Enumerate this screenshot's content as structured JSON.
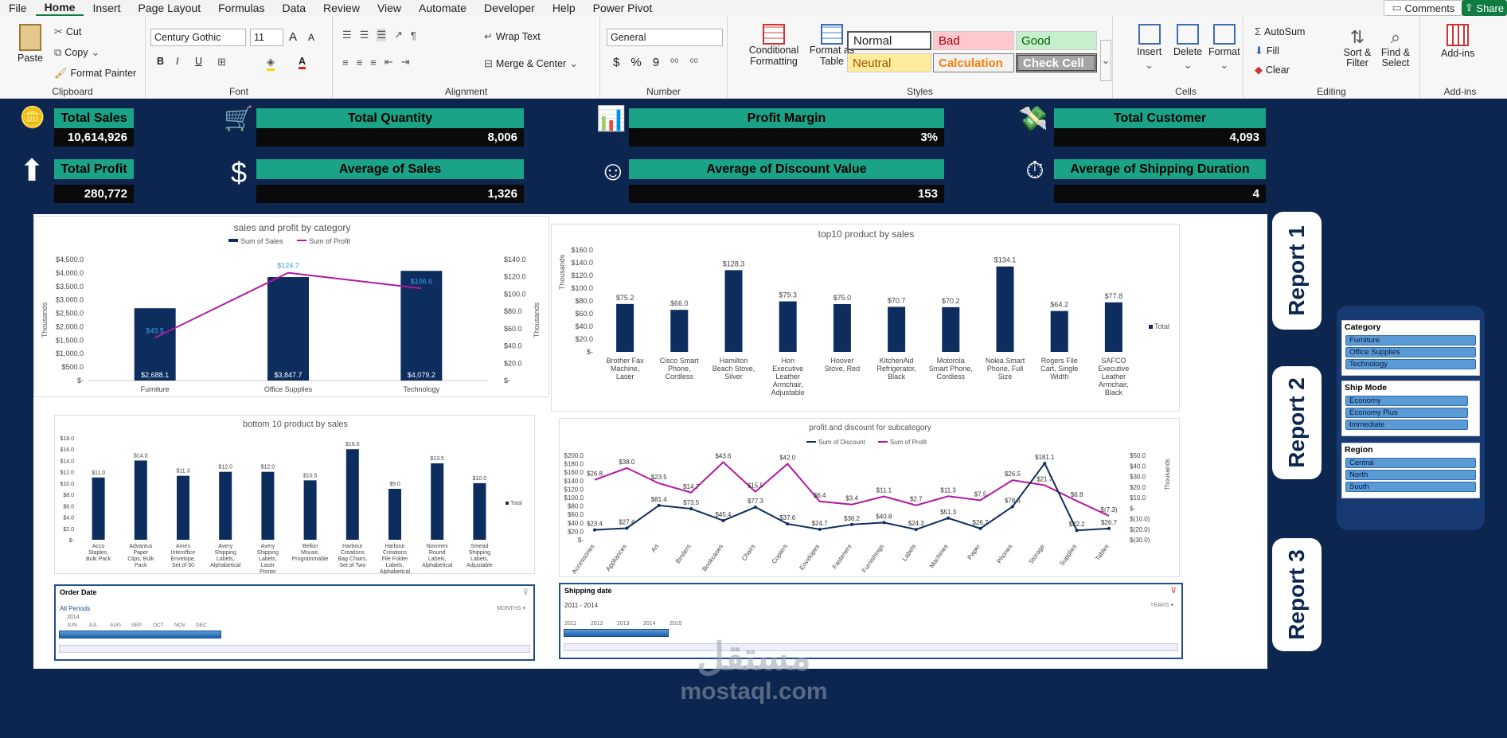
{
  "menu": {
    "tabs": [
      "File",
      "Home",
      "Insert",
      "Page Layout",
      "Formulas",
      "Data",
      "Review",
      "View",
      "Automate",
      "Developer",
      "Help",
      "Power Pivot"
    ],
    "comments": "Comments",
    "share": "Share"
  },
  "ribbon": {
    "clipboard": {
      "paste": "Paste",
      "cut": "Cut",
      "copy": "Copy",
      "format_painter": "Format Painter",
      "label": "Clipboard"
    },
    "font": {
      "name": "Century Gothic",
      "size": "11",
      "grow": "A",
      "shrink": "A",
      "bold": "B",
      "italic": "I",
      "underline": "U",
      "label": "Font"
    },
    "alignment": {
      "wrap": "Wrap Text",
      "merge": "Merge & Center",
      "label": "Alignment"
    },
    "number": {
      "format": "General",
      "currency": "$",
      "percent": "%",
      "comma": "9",
      "label": "Number"
    },
    "styles": {
      "conditional": "Conditional Formatting",
      "format_table": "Format as Table",
      "normal": "Normal",
      "bad": "Bad",
      "good": "Good",
      "neutral": "Neutral",
      "calculation": "Calculation",
      "check": "Check Cell",
      "label": "Styles"
    },
    "cells": {
      "insert": "Insert",
      "delete": "Delete",
      "format": "Format",
      "label": "Cells"
    },
    "editing": {
      "autosum": "AutoSum",
      "fill": "Fill",
      "clear": "Clear",
      "sort": "Sort & Filter",
      "find": "Find & Select",
      "label": "Editing"
    },
    "addins": {
      "addins": "Add-ins",
      "label": "Add-ins"
    }
  },
  "kpis": {
    "total_sales": {
      "label": "Total Sales",
      "value": "10,614,926"
    },
    "total_quantity": {
      "label": "Total Quantity",
      "value": "8,006"
    },
    "profit_margin": {
      "label": "Profit Margin",
      "value": "3%"
    },
    "total_customer": {
      "label": "Total Customer",
      "value": "4,093"
    },
    "total_profit": {
      "label": "Total Profit",
      "value": "280,772"
    },
    "average_sales": {
      "label": "Average of Sales",
      "value": "1,326"
    },
    "average_discount": {
      "label": "Average of Discount Value",
      "value": "153"
    },
    "average_shipping": {
      "label": "Average of Shipping Duration",
      "value": "4"
    }
  },
  "icons": {
    "coins": "coins-icon",
    "cart": "cart-icon",
    "chart": "bar-chart-icon",
    "money": "money-icon",
    "arrow": "arrow-up-icon",
    "dollar": "dollar-icon",
    "smile": "smile-icon",
    "timer": "stopwatch-icon"
  },
  "chart_data": [
    {
      "type": "bar",
      "title": "sales and profit by category",
      "categories": [
        "Furniture",
        "Office Supplies",
        "Technology"
      ],
      "series": [
        {
          "name": "Sum of Sales",
          "values": [
            2688.1,
            3847.7,
            4079.2
          ]
        },
        {
          "name": "Sum of Profit",
          "values": [
            49.5,
            124.7,
            106.6
          ]
        }
      ],
      "data_labels_sales": [
        "$2,688.1",
        "$3,847.7",
        "$4,079.2"
      ],
      "data_labels_profit": [
        "$49.5",
        "$124.7",
        "$106.6"
      ],
      "ylabel": "Thousands",
      "y2label": "Thousands",
      "yticks": [
        "$4,500.0",
        "$4,000.0",
        "$3,500.0",
        "$3,000.0",
        "$2,500.0",
        "$2,000.0",
        "$1,500.0",
        "$1,000.0",
        "$500.0",
        "$-"
      ],
      "y2ticks": [
        "$140.0",
        "$120.0",
        "$100.0",
        "$80.0",
        "$60.0",
        "$40.0",
        "$20.0",
        "$-"
      ],
      "ylim": [
        0,
        4500
      ],
      "y2lim": [
        0,
        140
      ],
      "colors": {
        "bar": "#0d2d5e",
        "line": "#b5179e",
        "profit_label": "#3d9be9"
      }
    },
    {
      "type": "bar",
      "title": "top10 product by sales",
      "categories": [
        "Brother Fax Machine, Laser",
        "Cisco Smart Phone, Cordless",
        "Hamilton Beach Stove, Silver",
        "Hon Executive Leather Armchair, Adjustable",
        "Hoover Stove, Red",
        "KitchenAid Refrigerator, Black",
        "Motorola Smart Phone, Cordless",
        "Nokia Smart Phone, Full Size",
        "Rogers File Cart, Single Width",
        "SAFCO Executive Leather Armchair, Black"
      ],
      "values": [
        75.2,
        66.0,
        128.3,
        79.3,
        75.0,
        70.7,
        70.2,
        134.1,
        64.2,
        77.8
      ],
      "data_labels": [
        "$75.2",
        "$66.0",
        "$128.3",
        "$79.3",
        "$75.0",
        "$70.7",
        "$70.2",
        "$134.1",
        "$64.2",
        "$77.8"
      ],
      "ylabel": "Thousands",
      "yticks": [
        "$160.0",
        "$140.0",
        "$120.0",
        "$100.0",
        "$80.0",
        "$60.0",
        "$40.0",
        "$20.0",
        "$-"
      ],
      "ylim": [
        0,
        160
      ],
      "legend": "Total",
      "colors": {
        "bar": "#0d2d5e"
      }
    },
    {
      "type": "bar",
      "title": "bottom 10 product by sales",
      "categories": [
        "Acco Staples, Bulk Pack",
        "Advantus Paper Clips, Bulk Pack",
        "Ames Interoffice Envelope, Set of 50",
        "Avery Shipping Labels, Alphabetical",
        "Avery Shipping Labels, Laser Printer Compatible",
        "Belkin Mouse, Programmable",
        "Harbour Creations Bag Chairs, Set of Two",
        "Harbour Creations File Folder Labels, Alphabetical",
        "Novimex Round Labels, Alphabetical",
        "Smead Shipping Labels, Adjustable"
      ],
      "values": [
        11.0,
        14.0,
        11.3,
        12.0,
        12.0,
        10.5,
        16.0,
        9.0,
        13.5,
        10.0
      ],
      "data_labels": [
        "$11.0",
        "$14.0",
        "$11.3",
        "$12.0",
        "$12.0",
        "$10.5",
        "$16.0",
        "$9.0",
        "$13.5",
        "$10.0"
      ],
      "yticks": [
        "$18.0",
        "$16.0",
        "$14.0",
        "$12.0",
        "$10.0",
        "$8.0",
        "$6.0",
        "$4.0",
        "$2.0",
        "$-"
      ],
      "ylim": [
        0,
        18
      ],
      "legend": "Total",
      "colors": {
        "bar": "#0d2d5e"
      }
    },
    {
      "type": "line",
      "title": "profit and discount for subcategory",
      "categories": [
        "Accessories",
        "Appliances",
        "Art",
        "Binders",
        "Bookcases",
        "Chairs",
        "Copiers",
        "Envelopes",
        "Fasteners",
        "Furnishings",
        "Labels",
        "Machines",
        "Paper",
        "Phones",
        "Storage",
        "Supplies",
        "Tables"
      ],
      "series": [
        {
          "name": "Sum of Discount",
          "values": [
            23.4,
            27.4,
            81.4,
            73.5,
            45.4,
            77.3,
            37.6,
            24.7,
            36.2,
            40.8,
            24.3,
            51.3,
            26.7,
            78.6,
            181.1,
            22.2,
            26.7
          ]
        },
        {
          "name": "Sum of Profit",
          "values": [
            26.8,
            38.0,
            23.5,
            14.7,
            43.6,
            15.5,
            42.0,
            6.4,
            3.4,
            11.1,
            2.7,
            11.3,
            7.5,
            26.5,
            21.7,
            6.8,
            -7.3
          ]
        }
      ],
      "discount_labels": [
        "$23.4",
        "$27.4",
        "$81.4",
        "$73.5",
        "$45.4",
        "$77.3",
        "$37.6",
        "$24.7",
        "$36.2",
        "$40.8",
        "$24.3",
        "$51.3",
        "$26.7",
        "$78.6",
        "$181.1",
        "$22.2",
        "$26.7"
      ],
      "profit_labels": [
        "$26.8",
        "$38.0",
        "$23.5",
        "$14.7",
        "$43.6",
        "$15.5",
        "$42.0",
        "$6.4",
        "$3.4",
        "$11.1",
        "$2.7",
        "$11.3",
        "$7.5",
        "$26.5",
        "$21.7",
        "$6.8",
        "$(7.3)"
      ],
      "yticks": [
        "$200.0",
        "$180.0",
        "$160.0",
        "$140.0",
        "$120.0",
        "$100.0",
        "$80.0",
        "$60.0",
        "$40.0",
        "$20.0",
        "$-"
      ],
      "y2ticks": [
        "$50.0",
        "$40.0",
        "$30.0",
        "$20.0",
        "$10.0",
        "$-",
        "$(10.0)",
        "$(20.0)",
        "$(30.0)"
      ],
      "y2label": "Thousands",
      "ylim": [
        0,
        200
      ],
      "y2lim": [
        -30,
        50
      ],
      "colors": {
        "discount": "#0d2d5e",
        "profit": "#b5179e"
      }
    }
  ],
  "timelines": {
    "order": {
      "title": "Order Date",
      "period": "All Periods",
      "unit": "MONTHS",
      "year": "2014",
      "months": [
        "JUN",
        "JUL",
        "AUG",
        "SEP",
        "OCT",
        "NOV",
        "DEC"
      ]
    },
    "shipping": {
      "title": "Shipping date",
      "period": "2011 - 2014",
      "unit": "YEARS",
      "years": [
        "2011",
        "2012",
        "2013",
        "2014",
        "2015"
      ]
    }
  },
  "reports": [
    "Report 1",
    "Report 2",
    "Report 3"
  ],
  "slicers": {
    "category": {
      "title": "Category",
      "items": [
        "Furniture",
        "Office Supplies",
        "Technology"
      ]
    },
    "ship_mode": {
      "title": "Ship Mode",
      "items": [
        "Economy",
        "Economy Plus",
        "Immediate"
      ]
    },
    "region": {
      "title": "Region",
      "items": [
        "Central",
        "North",
        "South"
      ]
    }
  },
  "watermark": {
    "arabic": "مستقل",
    "latin": "mostaql.com"
  }
}
